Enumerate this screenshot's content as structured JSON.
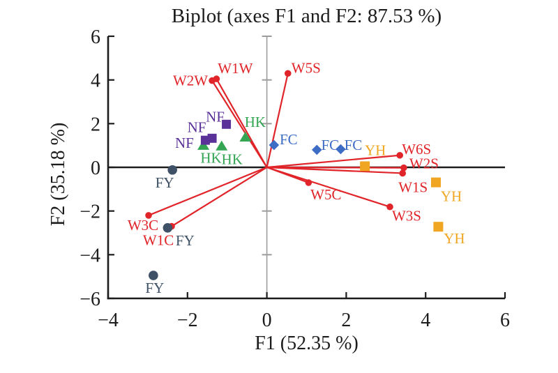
{
  "title": "Biplot (axes F1 and F2: 87.53 %)",
  "chart_data": {
    "type": "scatter",
    "subtype": "pca-biplot",
    "title": "Biplot (axes F1 and F2: 87.53 %)",
    "xlabel": "F1 (52.35 %)",
    "ylabel": "F2 (35.18 %)",
    "xlim": [
      -4,
      6
    ],
    "ylim": [
      -6,
      6
    ],
    "xticks": [
      -4,
      -2,
      0,
      2,
      4,
      6
    ],
    "yticks": [
      6,
      4,
      2,
      0,
      -2,
      -4,
      -6
    ],
    "grid": false,
    "legend": "none",
    "colors": {
      "vector": "#e02429",
      "axis": "#1c1c1c",
      "center_line": "#9c9c9c",
      "text": "#1c1c1c",
      "NF": "#5a3199",
      "HK": "#34a553",
      "FC": "#3e6dc6",
      "YH": "#f0a622",
      "FY": "#3e5167"
    },
    "vectors": [
      {
        "label": "W2W",
        "x": -1.38,
        "y": 3.97,
        "ldx": -31,
        "ldy": 7
      },
      {
        "label": "W1W",
        "x": -1.27,
        "y": 4.05,
        "ldx": 27,
        "ldy": -8
      },
      {
        "label": "W5S",
        "x": 0.53,
        "y": 4.3,
        "ldx": 26,
        "ldy": -1
      },
      {
        "label": "W6S",
        "x": 3.35,
        "y": 0.55,
        "ldx": 24,
        "ldy": -2
      },
      {
        "label": "W2S",
        "x": 3.45,
        "y": -0.02,
        "ldx": 29,
        "ldy": 1
      },
      {
        "label": "W1S",
        "x": 3.42,
        "y": -0.27,
        "ldx": 15,
        "ldy": 27
      },
      {
        "label": "W3S",
        "x": 3.1,
        "y": -1.81,
        "ldx": 24,
        "ldy": 20
      },
      {
        "label": "W5C",
        "x": 1.05,
        "y": -0.7,
        "ldx": 25,
        "ldy": 24
      },
      {
        "label": "W3C",
        "x": -2.98,
        "y": -2.2,
        "ldx": -8,
        "ldy": 21
      },
      {
        "label": "W1C",
        "x": -2.4,
        "y": -2.7,
        "ldx": -19,
        "ldy": 27
      }
    ],
    "series": [
      {
        "name": "HK",
        "marker": "triangle",
        "size": 16,
        "points": [
          {
            "x": -0.54,
            "y": 1.38,
            "ldx": 14,
            "ldy": -15
          },
          {
            "x": -1.14,
            "y": 0.97,
            "ldx": 15,
            "ldy": 26
          },
          {
            "x": -1.6,
            "y": 1.0,
            "ldx": 11,
            "ldy": 25
          }
        ]
      },
      {
        "name": "NF",
        "marker": "square",
        "size": 13,
        "points": [
          {
            "x": -1.02,
            "y": 1.97,
            "ldx": -16,
            "ldy": -4
          },
          {
            "x": -1.55,
            "y": 1.24,
            "ldx": -30,
            "ldy": 11
          },
          {
            "x": -1.38,
            "y": 1.33,
            "ldx": -22,
            "ldy": -9
          }
        ]
      },
      {
        "name": "FC",
        "marker": "diamond",
        "size": 15,
        "points": [
          {
            "x": 0.18,
            "y": 1.02,
            "ldx": 21,
            "ldy": -1
          },
          {
            "x": 1.26,
            "y": 0.8,
            "ldx": 19,
            "ldy": 0
          },
          {
            "x": 1.86,
            "y": 0.83,
            "ldx": 18,
            "ldy": 1
          }
        ]
      },
      {
        "name": "YH",
        "marker": "square",
        "size": 14,
        "points": [
          {
            "x": 2.47,
            "y": 0.05,
            "ldx": 15,
            "ldy": -16
          },
          {
            "x": 4.26,
            "y": -0.69,
            "ldx": 22,
            "ldy": 27
          },
          {
            "x": 4.32,
            "y": -2.72,
            "ldx": 23,
            "ldy": 24
          }
        ]
      },
      {
        "name": "FY",
        "marker": "circle",
        "size": 13,
        "points": [
          {
            "x": -2.38,
            "y": -0.12,
            "ldx": -11,
            "ldy": 25
          },
          {
            "x": -2.5,
            "y": -2.77,
            "ldx": 25,
            "ldy": 25
          },
          {
            "x": -2.86,
            "y": -4.95,
            "ldx": 2,
            "ldy": 25
          }
        ]
      }
    ]
  }
}
